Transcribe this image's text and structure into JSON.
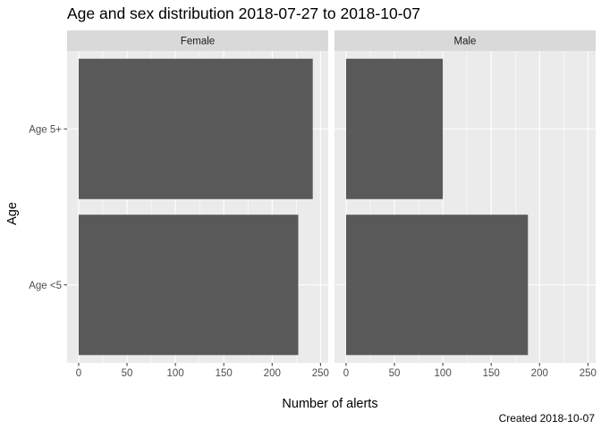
{
  "chart_data": {
    "type": "bar",
    "orientation": "horizontal",
    "title": "Age and sex distribution 2018-07-27 to 2018-10-07",
    "xlabel": "Number of alerts",
    "ylabel": "Age",
    "caption": "Created 2018-10-07",
    "categories": [
      "Age 5+",
      "Age <5"
    ],
    "xlim": [
      -12,
      258
    ],
    "xticks": [
      0,
      50,
      100,
      150,
      200,
      250
    ],
    "grid": true,
    "bar_color": "#595959",
    "panel_background": "#ebebeb",
    "strip_background": "#d9d9d9",
    "facets": [
      {
        "label": "Female",
        "values": [
          242,
          227
        ]
      },
      {
        "label": "Male",
        "values": [
          100,
          188
        ]
      }
    ]
  }
}
